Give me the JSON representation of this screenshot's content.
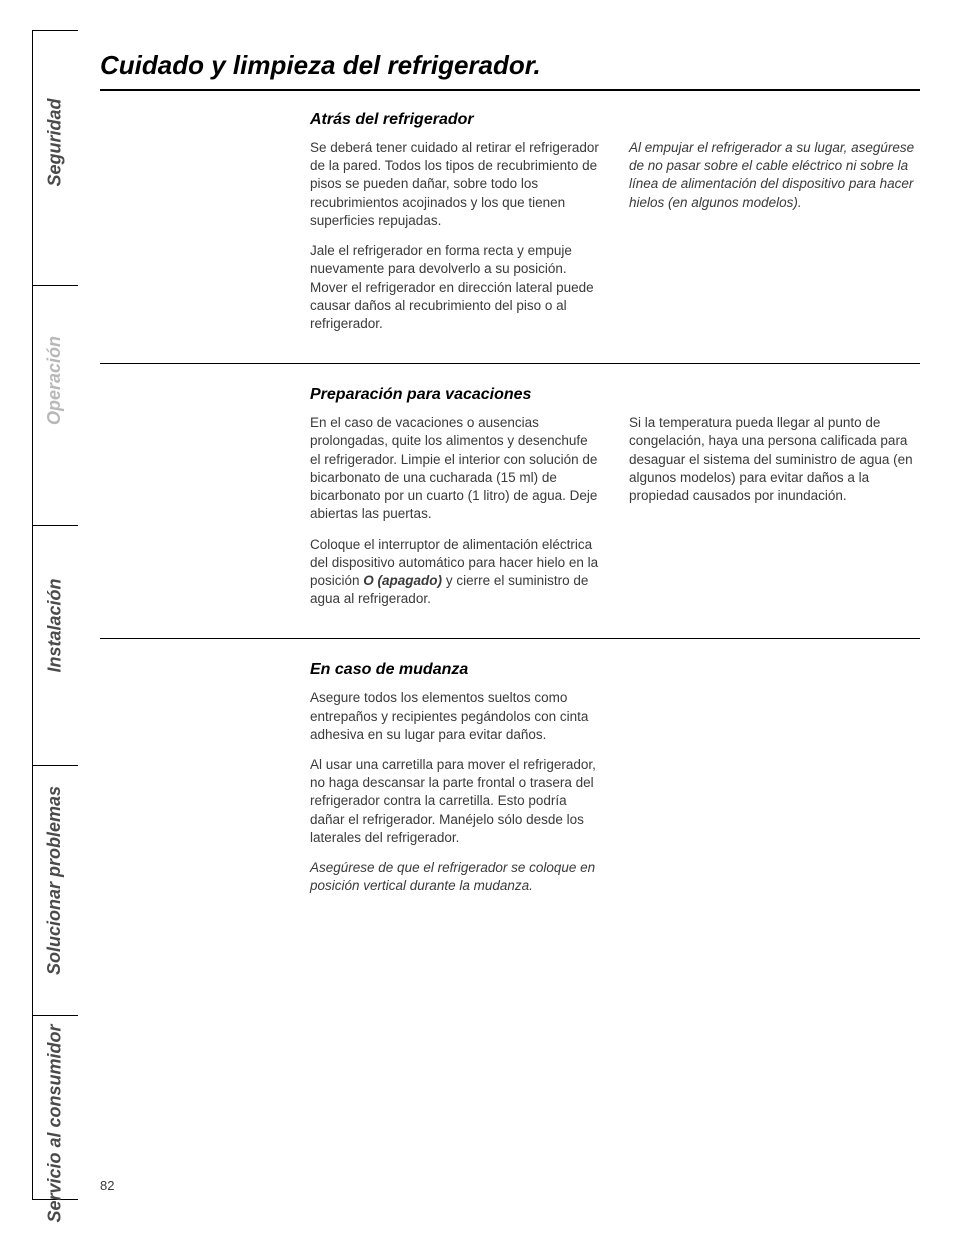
{
  "tabs": {
    "seguridad": "Seguridad",
    "operacion": "Operación",
    "instalacion": "Instalación",
    "solucionar": "Solucionar problemas",
    "servicio": "Servicio al consumidor"
  },
  "title": "Cuidado y limpieza del refrigerador.",
  "section1": {
    "heading": "Atrás del refrigerador",
    "left_p1": "Se deberá tener cuidado al retirar el refrigerador de la pared. Todos los tipos de recubrimiento de pisos se pueden dañar, sobre todo los recubrimientos acojinados y los que tienen superficies repujadas.",
    "left_p2": "Jale el refrigerador en forma recta y empuje nuevamente para devolverlo a su posición. Mover el refrigerador en dirección lateral puede causar daños al recubrimiento del piso o al refrigerador.",
    "right_p1": "Al empujar el refrigerador a su lugar, asegúrese de no pasar sobre el cable eléctrico ni sobre la línea de alimentación del dispositivo para hacer hielos (en algunos modelos)."
  },
  "section2": {
    "heading": "Preparación para vacaciones",
    "left_p1": "En el caso de vacaciones o ausencias prolongadas, quite los alimentos y desenchufe el refrigerador. Limpie el interior con solución de bicarbonato de una cucharada (15 ml) de bicarbonato por un cuarto (1 litro) de agua. Deje abiertas las puertas.",
    "left_p2_a": "Coloque el interruptor de alimentación eléctrica del dispositivo automático para hacer hielo en la posición ",
    "left_p2_bold": "O (apagado)",
    "left_p2_b": " y cierre el suministro de agua al refrigerador.",
    "right_p1": "Si la temperatura pueda llegar al punto de congelación, haya una persona calificada para desaguar el sistema del suministro de agua (en algunos modelos) para evitar daños a la propiedad causados por inundación."
  },
  "section3": {
    "heading": "En caso de mudanza",
    "left_p1": "Asegure todos los elementos sueltos como entrepaños y recipientes pegándolos con cinta adhesiva en su lugar para evitar daños.",
    "left_p2": "Al usar una carretilla para mover el refrigerador, no haga descansar la parte frontal o trasera del refrigerador contra la carretilla. Esto podría dañar el refrigerador. Manéjelo sólo desde los laterales del refrigerador.",
    "left_p3": "Asegúrese de que el refrigerador se coloque en posición vertical durante la mudanza."
  },
  "page_number": "82",
  "colors": {
    "text": "#3a3a3a",
    "heading": "#000000",
    "tab_active": "#4a4a4a",
    "tab_inactive": "#b8b8b8",
    "border": "#000000",
    "background": "#ffffff"
  },
  "typography": {
    "title_fontsize": 26,
    "section_heading_fontsize": 16,
    "body_fontsize": 13.5,
    "tab_fontsize": 18
  }
}
